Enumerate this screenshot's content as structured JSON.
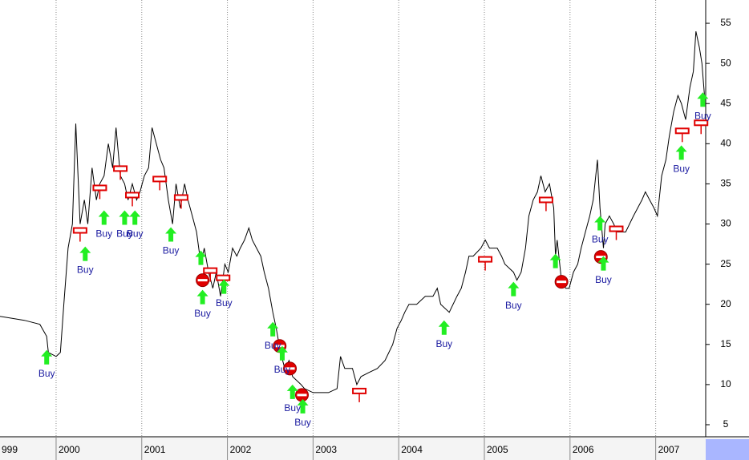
{
  "chart_data": {
    "type": "line",
    "x": [
      1999.34,
      1999.63,
      1999.81,
      1999.89,
      1999.91,
      2000.0,
      2000.05,
      2000.09,
      2000.14,
      2000.19,
      2000.23,
      2000.28,
      2000.33,
      2000.37,
      2000.42,
      2000.47,
      2000.51,
      2000.56,
      2000.61,
      2000.66,
      2000.7,
      2000.75,
      2000.8,
      2000.84,
      2000.89,
      2000.94,
      2000.98,
      2001.03,
      2001.08,
      2001.12,
      2001.17,
      2001.22,
      2001.26,
      2001.31,
      2001.36,
      2001.4,
      2001.45,
      2001.5,
      2001.54,
      2001.59,
      2001.64,
      2001.69,
      2001.73,
      2001.78,
      2001.83,
      2001.87,
      2001.92,
      2001.97,
      2002.01,
      2002.06,
      2002.11,
      2002.15,
      2002.2,
      2002.25,
      2002.29,
      2002.34,
      2002.39,
      2002.43,
      2002.48,
      2002.53,
      2002.57,
      2002.62,
      2002.67,
      2002.72,
      2002.76,
      2002.81,
      2002.86,
      2002.9,
      2003.0,
      2003.09,
      2003.18,
      2003.28,
      2003.32,
      2003.37,
      2003.46,
      2003.51,
      2003.56,
      2003.65,
      2003.75,
      2003.84,
      2003.93,
      2003.98,
      2004.03,
      2004.07,
      2004.12,
      2004.21,
      2004.31,
      2004.4,
      2004.45,
      2004.49,
      2004.59,
      2004.68,
      2004.73,
      2004.78,
      2004.82,
      2004.87,
      2004.96,
      2005.01,
      2005.06,
      2005.15,
      2005.2,
      2005.24,
      2005.34,
      2005.38,
      2005.43,
      2005.48,
      2005.52,
      2005.57,
      2005.62,
      2005.66,
      2005.71,
      2005.76,
      2005.81,
      2005.83,
      2005.85,
      2005.9,
      2005.95,
      2005.99,
      2006.04,
      2006.09,
      2006.13,
      2006.18,
      2006.23,
      2006.27,
      2006.32,
      2006.35,
      2006.39,
      2006.41,
      2006.46,
      2006.51,
      2006.55,
      2006.65,
      2006.74,
      2006.79,
      2006.84,
      2006.88,
      2006.93,
      2006.98,
      2007.02,
      2007.07,
      2007.12,
      2007.16,
      2007.21,
      2007.26,
      2007.3,
      2007.35,
      2007.4,
      2007.44,
      2007.47,
      2007.51,
      2007.54,
      2007.57
    ],
    "series": [
      {
        "color": "#000000",
        "values": [
          18.5,
          18,
          17.5,
          16,
          14,
          13.5,
          14,
          20,
          27,
          30,
          42.5,
          30,
          33,
          30,
          37,
          33,
          35,
          36,
          40,
          37,
          42,
          36,
          35,
          33,
          35,
          33,
          34,
          36,
          37,
          42,
          40,
          38,
          37,
          33,
          30,
          35,
          32,
          35,
          33,
          31,
          29,
          25,
          27,
          24,
          22,
          24,
          21,
          25,
          24,
          27,
          26,
          27,
          28,
          29.5,
          28,
          27,
          26,
          24,
          22,
          19,
          17,
          14,
          12,
          13,
          11,
          10.5,
          10,
          9.5,
          9,
          9,
          9,
          9.5,
          13.5,
          12,
          12,
          10,
          11,
          11.5,
          12,
          13,
          15,
          17,
          18,
          19,
          20,
          20,
          21,
          21,
          22,
          20,
          19,
          21,
          22,
          24,
          26,
          26,
          27,
          28,
          27,
          27,
          26,
          25,
          24,
          23,
          24,
          27,
          31,
          33,
          34,
          36,
          34,
          35,
          32,
          26,
          28,
          23,
          22,
          22,
          24,
          25,
          27,
          29,
          31,
          33,
          38,
          32,
          27,
          30,
          31,
          30,
          29,
          29,
          31,
          32,
          33,
          34,
          33,
          32,
          31,
          36,
          38,
          41,
          44,
          46,
          45,
          43,
          47,
          49,
          54,
          52,
          50,
          46
        ]
      }
    ],
    "buys": [
      {
        "x": 1999.89,
        "value": 14.3,
        "label": "Buy"
      },
      {
        "x": 2000.34,
        "value": 27.2,
        "label": "Buy"
      },
      {
        "x": 2000.56,
        "value": 31.7,
        "label": "Buy"
      },
      {
        "x": 2000.8,
        "value": 31.7,
        "label": "Buy"
      },
      {
        "x": 2000.92,
        "value": 31.7,
        "label": "Buy"
      },
      {
        "x": 2001.34,
        "value": 29.6,
        "label": "Buy"
      },
      {
        "x": 2001.69,
        "value": 26.7
      },
      {
        "x": 2001.71,
        "value": 21.8,
        "label": "Buy"
      },
      {
        "x": 2001.96,
        "value": 23.1,
        "label": "Buy"
      },
      {
        "x": 2002.53,
        "value": 17.8,
        "label": "Buy"
      },
      {
        "x": 2002.64,
        "value": 14.8,
        "label": "Buy"
      },
      {
        "x": 2002.76,
        "value": 10.0,
        "label": "Buy"
      },
      {
        "x": 2002.88,
        "value": 8.2,
        "label": "Buy"
      },
      {
        "x": 2004.53,
        "value": 18.0,
        "label": "Buy"
      },
      {
        "x": 2005.34,
        "value": 22.8,
        "label": "Buy"
      },
      {
        "x": 2005.83,
        "value": 26.3
      },
      {
        "x": 2006.35,
        "value": 31.0,
        "label": "Buy"
      },
      {
        "x": 2006.39,
        "value": 26.0,
        "label": "Buy"
      },
      {
        "x": 2007.3,
        "value": 39.8,
        "label": "Buy"
      },
      {
        "x": 2007.55,
        "value": 46.4,
        "label": "Buy"
      }
    ],
    "sells": [
      {
        "x": 2000.28,
        "value": 29.2
      },
      {
        "x": 2000.51,
        "value": 34.5
      },
      {
        "x": 2000.75,
        "value": 36.9
      },
      {
        "x": 2000.89,
        "value": 33.6
      },
      {
        "x": 2001.21,
        "value": 35.6
      },
      {
        "x": 2001.46,
        "value": 33.3
      },
      {
        "x": 2001.8,
        "value": 24.2
      },
      {
        "x": 2001.95,
        "value": 23.3
      },
      {
        "x": 2003.54,
        "value": 9.2
      },
      {
        "x": 2005.01,
        "value": 25.6
      },
      {
        "x": 2005.72,
        "value": 33.0
      },
      {
        "x": 2006.54,
        "value": 29.4
      },
      {
        "x": 2007.31,
        "value": 41.6
      },
      {
        "x": 2007.53,
        "value": 42.6
      }
    ],
    "stops": [
      {
        "x": 2001.71,
        "value": 23.0
      },
      {
        "x": 2002.61,
        "value": 14.8
      },
      {
        "x": 2002.73,
        "value": 12.0
      },
      {
        "x": 2002.87,
        "value": 8.7
      },
      {
        "x": 2005.9,
        "value": 22.8
      },
      {
        "x": 2006.36,
        "value": 25.9
      }
    ],
    "xlim": [
      1999.345,
      2007.584
    ],
    "xticks": [
      {
        "value": 1999,
        "label": "999"
      },
      2000,
      2001,
      2002,
      2003,
      2004,
      2005,
      2006,
      2007
    ],
    "ylim": [
      3.5,
      57.9
    ],
    "yticks": [
      5,
      10,
      15,
      20,
      25,
      30,
      35,
      40,
      45,
      50,
      55
    ],
    "grid": true
  }
}
